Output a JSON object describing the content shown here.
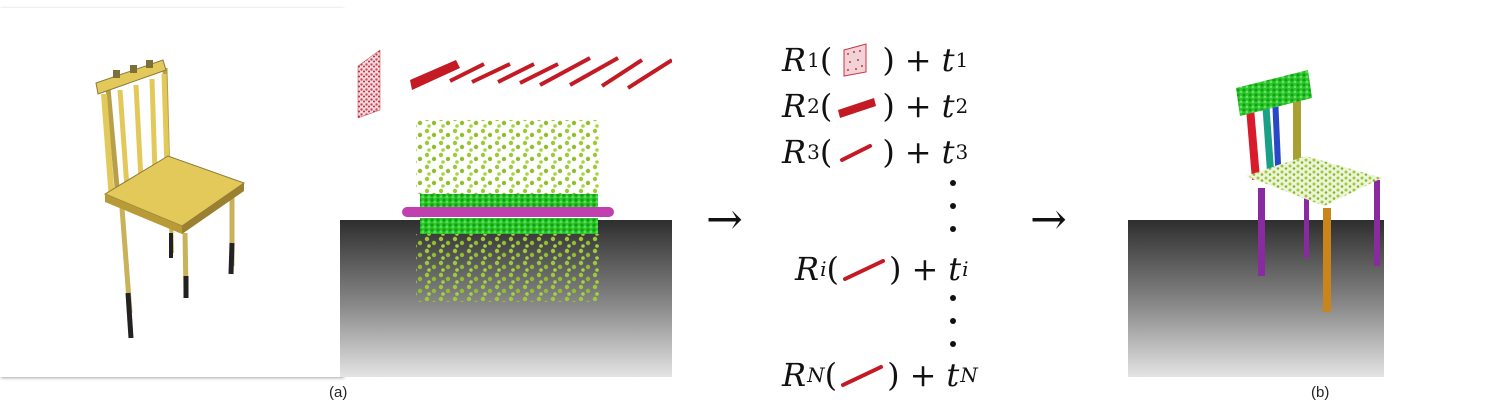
{
  "captions": {
    "a": "(a)",
    "b": "(b)"
  },
  "arrows": {
    "first": "→",
    "second": "→"
  },
  "equations": [
    {
      "R": "R",
      "sub": "1",
      "op": "+",
      "t": "t",
      "tsub": "1",
      "part": "back-panel",
      "sub_italic": false
    },
    {
      "R": "R",
      "sub": "2",
      "op": "+",
      "t": "t",
      "tsub": "2",
      "part": "seat-slab",
      "sub_italic": false
    },
    {
      "R": "R",
      "sub": "3",
      "op": "+",
      "t": "t",
      "tsub": "3",
      "part": "short-rod",
      "sub_italic": false
    },
    {
      "R": "R",
      "sub": "i",
      "op": "+",
      "t": "t",
      "tsub": "i",
      "part": "long-rod",
      "sub_italic": true
    },
    {
      "R": "R",
      "sub": "N",
      "op": "+",
      "t": "t",
      "tsub": "N",
      "part": "long-rod",
      "sub_italic": true
    }
  ],
  "colors": {
    "chair_yellow": "#e3c95a",
    "chair_dark": "#8a7a3a",
    "part_red": "#c41a24",
    "part_pink": "#e8a0a8",
    "points_green": "#9bcc34",
    "points_bright_green": "#22cc22",
    "points_magenta": "#c040b0",
    "leg_purple": "#8a2aa0",
    "leg_orange": "#c8861a",
    "slat_red": "#d81c2c",
    "slat_teal": "#18a088",
    "slat_blue": "#2848c8",
    "slat_olive": "#a8a030",
    "floor_dark": "#3a3a3a",
    "floor_light": "#e0e0e0"
  }
}
